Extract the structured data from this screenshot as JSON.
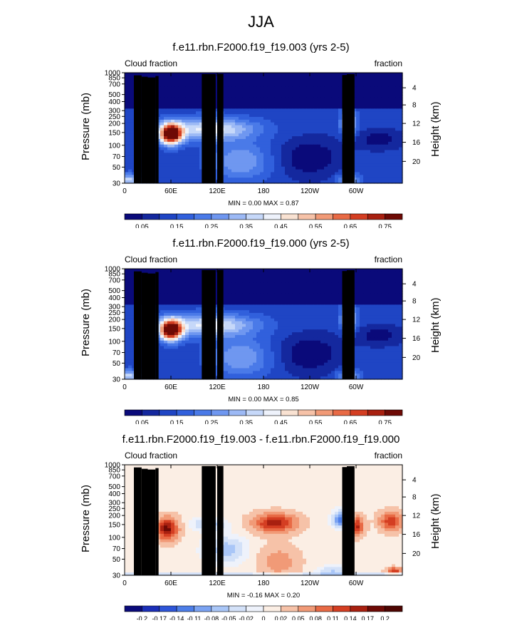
{
  "main_title": "JJA",
  "colors": {
    "palette_10": [
      "#0a0a7a",
      "#1b2fb8",
      "#2e55d8",
      "#4d7ee8",
      "#7ba3f2",
      "#a9c6f7",
      "#d3e1f8",
      "#f7e3d7",
      "#f6c2a8",
      "#f19a77",
      "#e86a45",
      "#d43e22",
      "#a82010",
      "#6e0a05"
    ],
    "terrain": "#000000"
  },
  "chart_data": [
    {
      "type": "heatmap",
      "title": "f.e11.rbn.F2000.f19_f19.003 (yrs 2-5)",
      "left_label": "Cloud fraction",
      "right_label": "fraction",
      "ylabel": "Pressure (mb)",
      "ylabel_right": "Height (km)",
      "x_ticks": [
        "0",
        "60E",
        "120E",
        "180",
        "120W",
        "60W"
      ],
      "y_ticks": [
        "1000",
        "850",
        "700",
        "500",
        "400",
        "300",
        "250",
        "200",
        "150",
        "100",
        "70",
        "50",
        "30"
      ],
      "y_ticks_right": [
        "4",
        "8",
        "12",
        "16",
        "20"
      ],
      "xlim": [
        0,
        360
      ],
      "ylim": [
        1000,
        30
      ],
      "min_max_text": "MIN =   0.00  MAX =   0.87",
      "min": 0.0,
      "max": 0.87,
      "colorbar_labels": [
        "0.05",
        "0.15",
        "0.25",
        "0.35",
        "0.45",
        "0.55",
        "0.65",
        "0.75"
      ],
      "colorbar_levels": [
        0.05,
        0.1,
        0.15,
        0.2,
        0.25,
        0.3,
        0.35,
        0.4,
        0.45,
        0.5,
        0.55,
        0.6,
        0.65,
        0.7,
        0.75
      ]
    },
    {
      "type": "heatmap",
      "title": "f.e11.rbn.F2000.f19_f19.000 (yrs 2-5)",
      "left_label": "Cloud fraction",
      "right_label": "fraction",
      "ylabel": "Pressure (mb)",
      "ylabel_right": "Height (km)",
      "x_ticks": [
        "0",
        "60E",
        "120E",
        "180",
        "120W",
        "60W"
      ],
      "y_ticks": [
        "1000",
        "850",
        "700",
        "500",
        "400",
        "300",
        "250",
        "200",
        "150",
        "100",
        "70",
        "50",
        "30"
      ],
      "y_ticks_right": [
        "4",
        "8",
        "12",
        "16",
        "20"
      ],
      "xlim": [
        0,
        360
      ],
      "ylim": [
        1000,
        30
      ],
      "min_max_text": "MIN =   0.00  MAX =   0.85",
      "min": 0.0,
      "max": 0.85,
      "colorbar_labels": [
        "0.05",
        "0.15",
        "0.25",
        "0.35",
        "0.45",
        "0.55",
        "0.65",
        "0.75"
      ],
      "colorbar_levels": [
        0.05,
        0.1,
        0.15,
        0.2,
        0.25,
        0.3,
        0.35,
        0.4,
        0.45,
        0.5,
        0.55,
        0.6,
        0.65,
        0.7,
        0.75
      ]
    },
    {
      "type": "heatmap",
      "title": "f.e11.rbn.F2000.f19_f19.003 - f.e11.rbn.F2000.f19_f19.000",
      "left_label": "Cloud fraction",
      "right_label": "fraction",
      "ylabel": "Pressure (mb)",
      "ylabel_right": "Height (km)",
      "x_ticks": [
        "0",
        "60E",
        "120E",
        "180",
        "120W",
        "60W"
      ],
      "y_ticks": [
        "1000",
        "850",
        "700",
        "500",
        "400",
        "300",
        "250",
        "200",
        "150",
        "100",
        "70",
        "50",
        "30"
      ],
      "y_ticks_right": [
        "4",
        "8",
        "12",
        "16",
        "20"
      ],
      "xlim": [
        0,
        360
      ],
      "ylim": [
        1000,
        30
      ],
      "min_max_text": "MIN =  -0.16  MAX =   0.20",
      "min": -0.16,
      "max": 0.2,
      "colorbar_labels": [
        "-0.2",
        "-0.17",
        "-0.14",
        "-0.11",
        "-0.08",
        "-0.05",
        "-0.02",
        "0",
        "0.02",
        "0.05",
        "0.08",
        "0.11",
        "0.14",
        "0.17",
        "0.2"
      ],
      "colorbar_levels": [
        -0.2,
        -0.17,
        -0.14,
        -0.11,
        -0.08,
        -0.05,
        -0.02,
        0,
        0.02,
        0.05,
        0.08,
        0.11,
        0.14,
        0.17,
        0.2
      ]
    }
  ]
}
